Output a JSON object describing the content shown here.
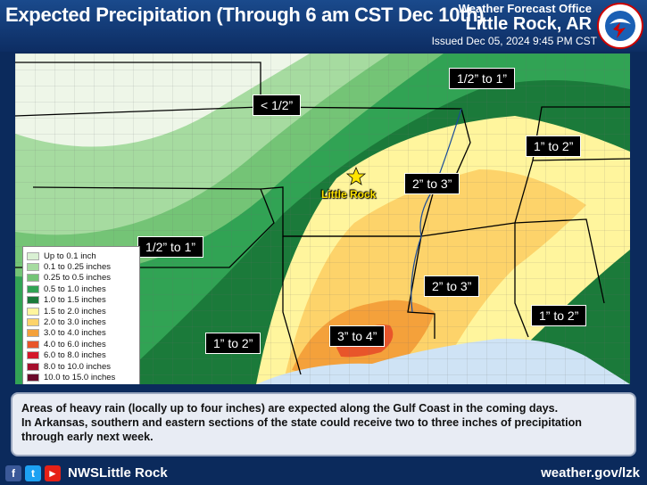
{
  "header": {
    "title": "Expected Precipitation (Through 6 am CST Dec 10th)",
    "office_label": "Weather Forecast Office",
    "office_name": "Little Rock, AR",
    "issued": "Issued Dec 05, 2024 9:45 PM CST"
  },
  "legend": [
    {
      "label": "Up to 0.1 inch",
      "color": "#d9f0d3"
    },
    {
      "label": "0.1 to 0.25 inches",
      "color": "#a6dba0"
    },
    {
      "label": "0.25 to 0.5 inches",
      "color": "#74c476"
    },
    {
      "label": "0.5 to 1.0 inches",
      "color": "#31a354"
    },
    {
      "label": "1.0 to 1.5 inches",
      "color": "#1b7a3a"
    },
    {
      "label": "1.5 to 2.0 inches",
      "color": "#fff59d"
    },
    {
      "label": "2.0 to 3.0 inches",
      "color": "#fdd36a"
    },
    {
      "label": "3.0 to 4.0 inches",
      "color": "#f4a13b"
    },
    {
      "label": "4.0 to 6.0 inches",
      "color": "#e8552a"
    },
    {
      "label": "6.0 to 8.0 inches",
      "color": "#d4182a"
    },
    {
      "label": "8.0 to 10.0 inches",
      "color": "#a50f2d"
    },
    {
      "label": "10.0 to 15.0 inches",
      "color": "#6b0a2a"
    }
  ],
  "map_labels": [
    "1/2” to 1”",
    "< 1/2”",
    "1” to 2”",
    "2” to 3”",
    "1/2” to 1”",
    "2” to 3”",
    "1” to 2”",
    "3” to 4”",
    "1” to 2”"
  ],
  "city": "Little Rock",
  "description": {
    "line1": "Areas of heavy rain (locally up to four inches) are expected along the Gulf Coast in the coming days.",
    "line2": "In Arkansas, southern and eastern sections of the state could receive two to three inches of precipitation through early next week."
  },
  "footer": {
    "handle": "NWSLittle Rock",
    "website": "weather.gov/lzk",
    "icons": [
      "facebook-icon",
      "twitter-icon",
      "youtube-icon"
    ]
  }
}
